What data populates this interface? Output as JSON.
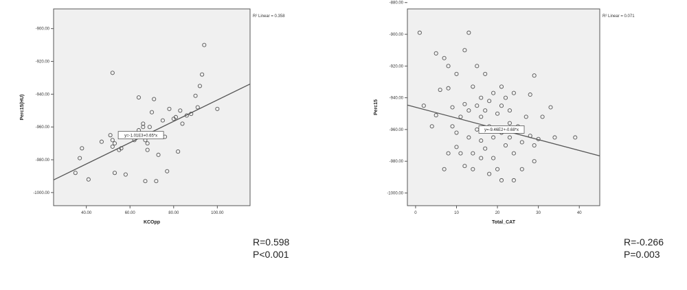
{
  "chart_data": [
    {
      "type": "scatter",
      "title": "",
      "xlabel": "KCOpp",
      "ylabel": "Perc15(HU)",
      "xlim": [
        25,
        115
      ],
      "ylim": [
        -1008,
        -888
      ],
      "x_ticks": [
        40,
        60,
        80,
        100
      ],
      "x_tick_labels": [
        "40.00",
        "60.00",
        "80.00",
        "100.00"
      ],
      "y_ticks": [
        -900,
        -920,
        -940,
        -960,
        -980,
        -1000
      ],
      "y_tick_labels": [
        "-900.00",
        "-920.00",
        "-940.00",
        "-960.00",
        "-980.00",
        "-1000.00"
      ],
      "grid": false,
      "r2_label": "R² Linear = 0.358",
      "fit_equation": "y=-1.01E3+0.65*x",
      "fit_line": {
        "x": [
          25,
          115
        ],
        "y": [
          -992.3,
          -933.8
        ]
      },
      "fit_label_at": {
        "x": 65,
        "y": -965
      },
      "points": [
        {
          "x": 35,
          "y": -988
        },
        {
          "x": 37,
          "y": -979
        },
        {
          "x": 38,
          "y": -973
        },
        {
          "x": 41,
          "y": -992
        },
        {
          "x": 47,
          "y": -969
        },
        {
          "x": 52,
          "y": -927
        },
        {
          "x": 51,
          "y": -965
        },
        {
          "x": 52,
          "y": -968
        },
        {
          "x": 52,
          "y": -972
        },
        {
          "x": 53,
          "y": -970
        },
        {
          "x": 53,
          "y": -988
        },
        {
          "x": 55,
          "y": -974
        },
        {
          "x": 56,
          "y": -973
        },
        {
          "x": 58,
          "y": -989
        },
        {
          "x": 60,
          "y": -966
        },
        {
          "x": 62,
          "y": -968
        },
        {
          "x": 64,
          "y": -962
        },
        {
          "x": 64,
          "y": -942
        },
        {
          "x": 66,
          "y": -958
        },
        {
          "x": 66,
          "y": -960
        },
        {
          "x": 67,
          "y": -968
        },
        {
          "x": 67,
          "y": -993
        },
        {
          "x": 68,
          "y": -970
        },
        {
          "x": 68,
          "y": -974
        },
        {
          "x": 69,
          "y": -960
        },
        {
          "x": 70,
          "y": -951
        },
        {
          "x": 71,
          "y": -943
        },
        {
          "x": 72,
          "y": -993
        },
        {
          "x": 73,
          "y": -977
        },
        {
          "x": 75,
          "y": -956
        },
        {
          "x": 76,
          "y": -966
        },
        {
          "x": 77,
          "y": -987
        },
        {
          "x": 78,
          "y": -949
        },
        {
          "x": 80,
          "y": -955
        },
        {
          "x": 81,
          "y": -954
        },
        {
          "x": 82,
          "y": -975
        },
        {
          "x": 83,
          "y": -950
        },
        {
          "x": 84,
          "y": -958
        },
        {
          "x": 86,
          "y": -953
        },
        {
          "x": 88,
          "y": -952
        },
        {
          "x": 90,
          "y": -941
        },
        {
          "x": 91,
          "y": -948
        },
        {
          "x": 92,
          "y": -935
        },
        {
          "x": 93,
          "y": -928
        },
        {
          "x": 94,
          "y": -910
        },
        {
          "x": 100,
          "y": -949
        }
      ]
    },
    {
      "type": "scatter",
      "title": "",
      "xlabel": "Total_CAT",
      "ylabel": "Perc15",
      "xlim": [
        -2,
        45
      ],
      "ylim": [
        -1008,
        -884
      ],
      "x_ticks": [
        0,
        10,
        20,
        30,
        40
      ],
      "x_tick_labels": [
        "0",
        "10",
        "20",
        "30",
        "40"
      ],
      "y_ticks": [
        -880,
        -900,
        -920,
        -940,
        -960,
        -980,
        -1000
      ],
      "y_tick_labels": [
        "-880.00",
        "-900.00",
        "-920.00",
        "-940.00",
        "-960.00",
        "-980.00",
        "-1000.00"
      ],
      "grid": false,
      "r2_label": "R² Linear = 0.071",
      "fit_equation": "y=-9.46E2+-0.68*x",
      "fit_line": {
        "x": [
          -2,
          45
        ],
        "y": [
          -944.6,
          -976.6
        ]
      },
      "fit_label_at": {
        "x": 21,
        "y": -960
      },
      "points": [
        {
          "x": 1,
          "y": -899
        },
        {
          "x": 2,
          "y": -945
        },
        {
          "x": 4,
          "y": -958
        },
        {
          "x": 5,
          "y": -912
        },
        {
          "x": 5,
          "y": -951
        },
        {
          "x": 6,
          "y": -935
        },
        {
          "x": 7,
          "y": -915
        },
        {
          "x": 7,
          "y": -985
        },
        {
          "x": 8,
          "y": -934
        },
        {
          "x": 8,
          "y": -920
        },
        {
          "x": 8,
          "y": -975
        },
        {
          "x": 9,
          "y": -946
        },
        {
          "x": 9,
          "y": -958
        },
        {
          "x": 10,
          "y": -925
        },
        {
          "x": 10,
          "y": -962
        },
        {
          "x": 10,
          "y": -971
        },
        {
          "x": 11,
          "y": -975
        },
        {
          "x": 11,
          "y": -952
        },
        {
          "x": 12,
          "y": -910
        },
        {
          "x": 12,
          "y": -944
        },
        {
          "x": 12,
          "y": -983
        },
        {
          "x": 13,
          "y": -899
        },
        {
          "x": 13,
          "y": -948
        },
        {
          "x": 13,
          "y": -965
        },
        {
          "x": 14,
          "y": -933
        },
        {
          "x": 14,
          "y": -975
        },
        {
          "x": 14,
          "y": -985
        },
        {
          "x": 15,
          "y": -920
        },
        {
          "x": 15,
          "y": -945
        },
        {
          "x": 15,
          "y": -960
        },
        {
          "x": 16,
          "y": -940
        },
        {
          "x": 16,
          "y": -952
        },
        {
          "x": 16,
          "y": -967
        },
        {
          "x": 16,
          "y": -978
        },
        {
          "x": 17,
          "y": -925
        },
        {
          "x": 17,
          "y": -948
        },
        {
          "x": 17,
          "y": -972
        },
        {
          "x": 18,
          "y": -942
        },
        {
          "x": 18,
          "y": -958
        },
        {
          "x": 18,
          "y": -988
        },
        {
          "x": 19,
          "y": -937
        },
        {
          "x": 19,
          "y": -965
        },
        {
          "x": 19,
          "y": -978
        },
        {
          "x": 20,
          "y": -950
        },
        {
          "x": 20,
          "y": -960
        },
        {
          "x": 20,
          "y": -985
        },
        {
          "x": 21,
          "y": -933
        },
        {
          "x": 21,
          "y": -945
        },
        {
          "x": 21,
          "y": -962
        },
        {
          "x": 21,
          "y": -992
        },
        {
          "x": 22,
          "y": -940
        },
        {
          "x": 22,
          "y": -970
        },
        {
          "x": 23,
          "y": -948
        },
        {
          "x": 23,
          "y": -956
        },
        {
          "x": 23,
          "y": -965
        },
        {
          "x": 24,
          "y": -937
        },
        {
          "x": 24,
          "y": -975
        },
        {
          "x": 24,
          "y": -992
        },
        {
          "x": 25,
          "y": -958
        },
        {
          "x": 26,
          "y": -968
        },
        {
          "x": 26,
          "y": -985
        },
        {
          "x": 27,
          "y": -952
        },
        {
          "x": 28,
          "y": -938
        },
        {
          "x": 28,
          "y": -964
        },
        {
          "x": 29,
          "y": -926
        },
        {
          "x": 29,
          "y": -970
        },
        {
          "x": 29,
          "y": -980
        },
        {
          "x": 30,
          "y": -966
        },
        {
          "x": 31,
          "y": -952
        },
        {
          "x": 33,
          "y": -946
        },
        {
          "x": 34,
          "y": -965
        },
        {
          "x": 39,
          "y": -965
        }
      ]
    }
  ],
  "stats": [
    {
      "r": "R=0.598",
      "p": "P<0.001"
    },
    {
      "r": "R=-0.266",
      "p": "P=0.003"
    }
  ]
}
